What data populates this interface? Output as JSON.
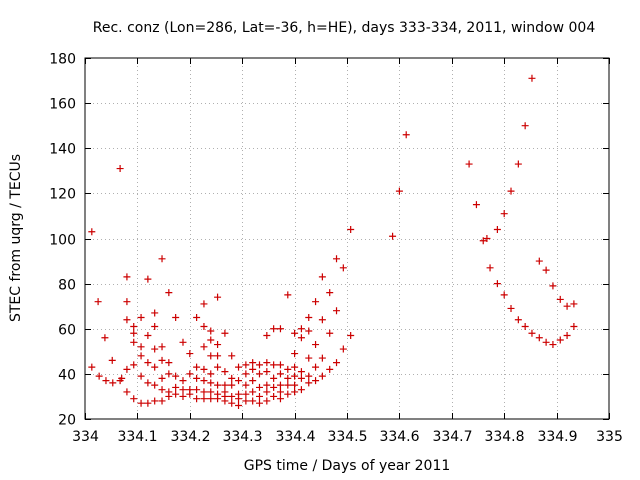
{
  "chart_data": {
    "type": "scatter",
    "title": "Rec. conz (Lon=286, Lat=-36, h=HE), days 333-334, 2011, window 004",
    "xlabel": "GPS time / Days of year 2011",
    "ylabel": "STEC from uqrg / TECUs",
    "xlim": [
      334,
      335
    ],
    "ylim": [
      20,
      180
    ],
    "xticks": [
      "334",
      "334.1",
      "334.2",
      "334.3",
      "334.4",
      "334.5",
      "334.6",
      "334.7",
      "334.8",
      "334.9",
      "335"
    ],
    "yticks": [
      "20",
      "40",
      "60",
      "80",
      "100",
      "120",
      "140",
      "160",
      "180"
    ],
    "grid": true,
    "marker": "plus",
    "colors": {
      "points": "#cc0000"
    },
    "points": [
      [
        334.013,
        103
      ],
      [
        334.013,
        43
      ],
      [
        334.025,
        72
      ],
      [
        334.027,
        39
      ],
      [
        334.038,
        56
      ],
      [
        334.04,
        37
      ],
      [
        334.052,
        46
      ],
      [
        334.053,
        36
      ],
      [
        334.067,
        131
      ],
      [
        334.067,
        37
      ],
      [
        334.07,
        38
      ],
      [
        334.08,
        83
      ],
      [
        334.08,
        72
      ],
      [
        334.08,
        64
      ],
      [
        334.08,
        42
      ],
      [
        334.08,
        32
      ],
      [
        334.093,
        61
      ],
      [
        334.093,
        58
      ],
      [
        334.093,
        54
      ],
      [
        334.093,
        44
      ],
      [
        334.093,
        29
      ],
      [
        334.107,
        65
      ],
      [
        334.107,
        52
      ],
      [
        334.107,
        48
      ],
      [
        334.107,
        39
      ],
      [
        334.107,
        27
      ],
      [
        334.12,
        82
      ],
      [
        334.12,
        57
      ],
      [
        334.12,
        45
      ],
      [
        334.12,
        36
      ],
      [
        334.12,
        27
      ],
      [
        334.133,
        67
      ],
      [
        334.133,
        61
      ],
      [
        334.133,
        51
      ],
      [
        334.133,
        43
      ],
      [
        334.133,
        35
      ],
      [
        334.133,
        28
      ],
      [
        334.147,
        91
      ],
      [
        334.147,
        52
      ],
      [
        334.147,
        46
      ],
      [
        334.147,
        38
      ],
      [
        334.147,
        33
      ],
      [
        334.147,
        28
      ],
      [
        334.16,
        76
      ],
      [
        334.16,
        45
      ],
      [
        334.16,
        40
      ],
      [
        334.16,
        32
      ],
      [
        334.16,
        30
      ],
      [
        334.173,
        65
      ],
      [
        334.173,
        39
      ],
      [
        334.173,
        34
      ],
      [
        334.173,
        31
      ],
      [
        334.187,
        54
      ],
      [
        334.187,
        37
      ],
      [
        334.187,
        33
      ],
      [
        334.187,
        30
      ],
      [
        334.2,
        49
      ],
      [
        334.2,
        40
      ],
      [
        334.2,
        33
      ],
      [
        334.2,
        31
      ],
      [
        334.213,
        65
      ],
      [
        334.213,
        43
      ],
      [
        334.213,
        38
      ],
      [
        334.213,
        33
      ],
      [
        334.213,
        29
      ],
      [
        334.227,
        71
      ],
      [
        334.227,
        61
      ],
      [
        334.227,
        52
      ],
      [
        334.227,
        42
      ],
      [
        334.227,
        37
      ],
      [
        334.227,
        32
      ],
      [
        334.227,
        29
      ],
      [
        334.24,
        59
      ],
      [
        334.24,
        55
      ],
      [
        334.24,
        48
      ],
      [
        334.24,
        40
      ],
      [
        334.24,
        36
      ],
      [
        334.24,
        32
      ],
      [
        334.24,
        29
      ],
      [
        334.253,
        74
      ],
      [
        334.253,
        53
      ],
      [
        334.253,
        48
      ],
      [
        334.253,
        43
      ],
      [
        334.253,
        35
      ],
      [
        334.253,
        31
      ],
      [
        334.253,
        29
      ],
      [
        334.267,
        58
      ],
      [
        334.267,
        41
      ],
      [
        334.267,
        35
      ],
      [
        334.267,
        32
      ],
      [
        334.267,
        30
      ],
      [
        334.267,
        28
      ],
      [
        334.28,
        48
      ],
      [
        334.28,
        38
      ],
      [
        334.28,
        35
      ],
      [
        334.28,
        30
      ],
      [
        334.28,
        27
      ],
      [
        334.293,
        43
      ],
      [
        334.293,
        37
      ],
      [
        334.293,
        31
      ],
      [
        334.293,
        29
      ],
      [
        334.293,
        26
      ],
      [
        334.307,
        44
      ],
      [
        334.307,
        40
      ],
      [
        334.307,
        35
      ],
      [
        334.307,
        31
      ],
      [
        334.307,
        28
      ],
      [
        334.32,
        45
      ],
      [
        334.32,
        42
      ],
      [
        334.32,
        37
      ],
      [
        334.32,
        32
      ],
      [
        334.32,
        28
      ],
      [
        334.333,
        44
      ],
      [
        334.333,
        40
      ],
      [
        334.333,
        34
      ],
      [
        334.333,
        30
      ],
      [
        334.333,
        27
      ],
      [
        334.347,
        57
      ],
      [
        334.347,
        45
      ],
      [
        334.347,
        41
      ],
      [
        334.347,
        35
      ],
      [
        334.347,
        32
      ],
      [
        334.347,
        28
      ],
      [
        334.36,
        60
      ],
      [
        334.36,
        44
      ],
      [
        334.36,
        38
      ],
      [
        334.36,
        34
      ],
      [
        334.36,
        30
      ],
      [
        334.373,
        60
      ],
      [
        334.373,
        44
      ],
      [
        334.373,
        40
      ],
      [
        334.373,
        35
      ],
      [
        334.373,
        32
      ],
      [
        334.373,
        29
      ],
      [
        334.387,
        75
      ],
      [
        334.387,
        42
      ],
      [
        334.387,
        38
      ],
      [
        334.387,
        35
      ],
      [
        334.387,
        31
      ],
      [
        334.4,
        58
      ],
      [
        334.4,
        49
      ],
      [
        334.4,
        43
      ],
      [
        334.4,
        39
      ],
      [
        334.4,
        35
      ],
      [
        334.4,
        32
      ],
      [
        334.413,
        60
      ],
      [
        334.413,
        56
      ],
      [
        334.413,
        41
      ],
      [
        334.413,
        38
      ],
      [
        334.413,
        33
      ],
      [
        334.427,
        65
      ],
      [
        334.427,
        59
      ],
      [
        334.427,
        47
      ],
      [
        334.427,
        39
      ],
      [
        334.427,
        36
      ],
      [
        334.44,
        72
      ],
      [
        334.44,
        53
      ],
      [
        334.44,
        43
      ],
      [
        334.44,
        37
      ],
      [
        334.453,
        83
      ],
      [
        334.453,
        64
      ],
      [
        334.453,
        47
      ],
      [
        334.453,
        39
      ],
      [
        334.467,
        76
      ],
      [
        334.467,
        58
      ],
      [
        334.467,
        42
      ],
      [
        334.48,
        91
      ],
      [
        334.48,
        68
      ],
      [
        334.48,
        45
      ],
      [
        334.493,
        87
      ],
      [
        334.493,
        51
      ],
      [
        334.507,
        104
      ],
      [
        334.507,
        57
      ],
      [
        334.587,
        101
      ],
      [
        334.6,
        121
      ],
      [
        334.613,
        146
      ],
      [
        334.733,
        133
      ],
      [
        334.747,
        115
      ],
      [
        334.76,
        99
      ],
      [
        334.767,
        100
      ],
      [
        334.773,
        87
      ],
      [
        334.787,
        104
      ],
      [
        334.787,
        80
      ],
      [
        334.8,
        111
      ],
      [
        334.8,
        75
      ],
      [
        334.813,
        121
      ],
      [
        334.813,
        69
      ],
      [
        334.827,
        133
      ],
      [
        334.827,
        64
      ],
      [
        334.84,
        150
      ],
      [
        334.84,
        61
      ],
      [
        334.853,
        171
      ],
      [
        334.853,
        58
      ],
      [
        334.867,
        90
      ],
      [
        334.867,
        56
      ],
      [
        334.88,
        86
      ],
      [
        334.88,
        54
      ],
      [
        334.893,
        79
      ],
      [
        334.893,
        53
      ],
      [
        334.907,
        73
      ],
      [
        334.907,
        55
      ],
      [
        334.92,
        70
      ],
      [
        334.92,
        57
      ],
      [
        334.933,
        71
      ],
      [
        334.933,
        61
      ]
    ]
  }
}
